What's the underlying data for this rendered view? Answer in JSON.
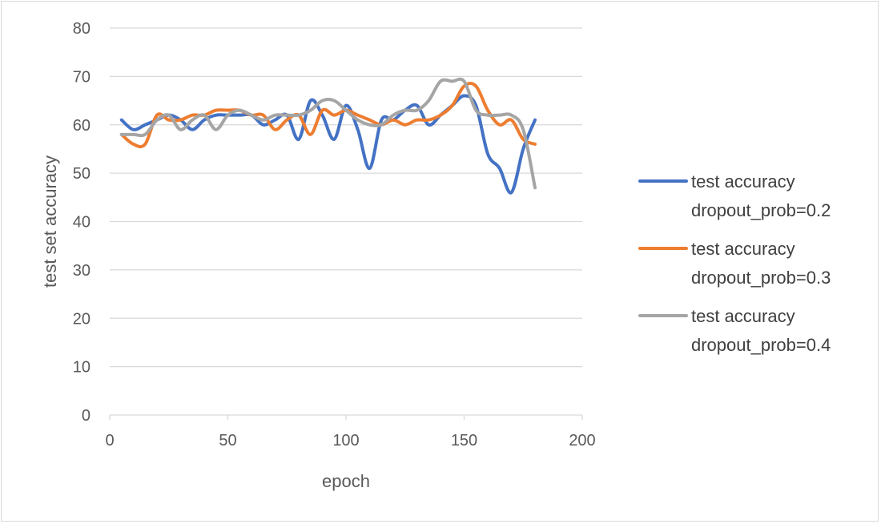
{
  "chart_data": {
    "type": "line",
    "title": "",
    "xlabel": "epoch",
    "ylabel": "test set accuracy",
    "xlim": [
      0,
      200
    ],
    "ylim": [
      0,
      80
    ],
    "x_ticks": [
      0,
      50,
      100,
      150,
      200
    ],
    "y_ticks": [
      0,
      10,
      20,
      30,
      40,
      50,
      60,
      70,
      80
    ],
    "grid": "horizontal",
    "legend_position": "right",
    "series": [
      {
        "name": "test accuracy dropout_prob=0.2",
        "legend_lines": [
          "test accuracy",
          "dropout_prob=0.2"
        ],
        "color": "#4472c4",
        "x": [
          5,
          10,
          15,
          20,
          25,
          30,
          35,
          40,
          45,
          50,
          55,
          60,
          65,
          70,
          75,
          80,
          85,
          90,
          95,
          100,
          105,
          110,
          115,
          120,
          125,
          130,
          135,
          140,
          145,
          150,
          155,
          160,
          165,
          170,
          175,
          180
        ],
        "y": [
          61,
          59,
          60,
          61,
          62,
          61,
          59,
          61,
          62,
          62,
          62,
          62,
          60,
          61,
          62,
          57,
          65,
          62,
          57,
          64,
          59,
          51,
          61,
          61,
          63,
          64,
          60,
          62,
          64,
          66,
          64,
          54,
          51,
          46,
          55,
          61
        ]
      },
      {
        "name": "test accuracy dropout_prob=0.3",
        "legend_lines": [
          "test accuracy",
          "dropout_prob=0.3"
        ],
        "color": "#ed7d31",
        "x": [
          5,
          10,
          15,
          20,
          25,
          30,
          35,
          40,
          45,
          50,
          55,
          60,
          65,
          70,
          75,
          80,
          85,
          90,
          95,
          100,
          105,
          110,
          115,
          120,
          125,
          130,
          135,
          140,
          145,
          150,
          155,
          160,
          165,
          170,
          175,
          180
        ],
        "y": [
          58,
          56,
          56,
          62,
          61,
          61,
          62,
          62,
          63,
          63,
          63,
          62,
          62,
          59,
          61,
          62,
          58,
          63,
          62,
          63,
          62,
          61,
          60,
          61,
          60,
          61,
          61,
          62,
          64,
          68,
          68,
          63,
          60,
          61,
          57,
          56
        ]
      },
      {
        "name": "test accuracy dropout_prob=0.4",
        "legend_lines": [
          "test accuracy",
          "dropout_prob=0.4"
        ],
        "color": "#a5a5a5",
        "x": [
          5,
          10,
          15,
          20,
          25,
          30,
          35,
          40,
          45,
          50,
          55,
          60,
          65,
          70,
          75,
          80,
          85,
          90,
          95,
          100,
          105,
          110,
          115,
          120,
          125,
          130,
          135,
          140,
          145,
          150,
          155,
          160,
          165,
          170,
          175,
          180
        ],
        "y": [
          58,
          58,
          58,
          61,
          62,
          59,
          61,
          62,
          59,
          62,
          63,
          62,
          61,
          62,
          62,
          62,
          63,
          65,
          65,
          63,
          61,
          60,
          60,
          62,
          63,
          63,
          65,
          69,
          69,
          69,
          63,
          62,
          62,
          62,
          59,
          47
        ]
      }
    ]
  }
}
